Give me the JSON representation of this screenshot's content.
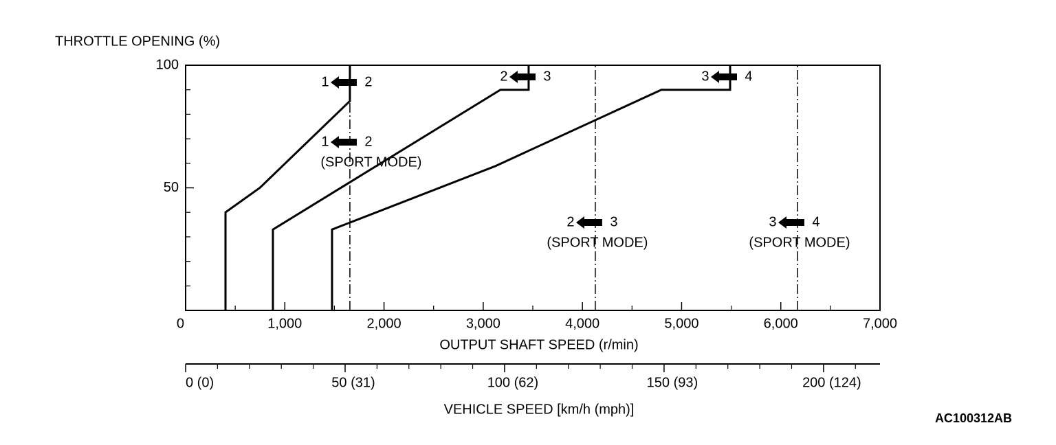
{
  "chart_data": {
    "type": "line",
    "y_label": "THROTTLE OPENING (%)",
    "x_label": "OUTPUT SHAFT SPEED (r/min)",
    "x2_label": "VEHICLE SPEED [km/h (mph)]",
    "figure_code": "AC100312AB",
    "xlim": [
      0,
      7000
    ],
    "xticks": [
      0,
      {
        "value": 1000,
        "label": "1,000"
      },
      {
        "value": 2000,
        "label": "2,000"
      },
      {
        "value": 3000,
        "label": "3,000"
      },
      {
        "value": 4000,
        "label": "4,000"
      },
      {
        "value": 5000,
        "label": "5,000"
      },
      {
        "value": 6000,
        "label": "6,000"
      },
      {
        "value": 7000,
        "label": "7,000"
      }
    ],
    "xticks_minor": [
      500,
      1500,
      2500,
      3500,
      4500,
      5500,
      6500
    ],
    "ylim": [
      0,
      100
    ],
    "yticks": [
      50,
      100
    ],
    "yticks_minor": [
      10,
      20,
      30,
      40,
      60,
      70,
      80,
      90
    ],
    "x2lim": [
      0,
      217.7
    ],
    "x2ticks": [
      {
        "value": 0,
        "label": "0 (0)"
      },
      {
        "value": 50,
        "label": "50 (31)"
      },
      {
        "value": 100,
        "label": "100 (62)"
      },
      {
        "value": 150,
        "label": "150 (93)"
      },
      {
        "value": 200,
        "label": "200 (124)"
      }
    ],
    "x2ticks_minor": [
      10,
      20,
      30,
      40,
      60,
      70,
      80,
      90,
      110,
      120,
      130,
      140,
      160,
      170,
      180,
      190,
      210
    ],
    "series": [
      {
        "from": "1",
        "to": "2",
        "style": "solid",
        "color": "#000000",
        "x": [
          402,
          402,
          748,
          1656,
          1656
        ],
        "values": [
          0,
          40,
          50,
          85.4,
          100
        ]
      },
      {
        "from": "2",
        "to": "3",
        "style": "solid",
        "color": "#000000",
        "x": [
          880,
          880,
          3174,
          3458,
          3458
        ],
        "values": [
          0,
          33,
          90,
          90,
          100
        ]
      },
      {
        "from": "3",
        "to": "4",
        "style": "solid",
        "color": "#000000",
        "x": [
          1476,
          1476,
          3119,
          4796,
          5489,
          5489
        ],
        "values": [
          0,
          33,
          58.8,
          90,
          90,
          100
        ]
      },
      {
        "from": "1",
        "to": "2",
        "mode": "(SPORT MODE)",
        "style": "dashed",
        "color": "#000000",
        "x": [
          1656,
          1656
        ],
        "values": [
          0,
          100
        ]
      },
      {
        "from": "2",
        "to": "3",
        "mode": "(SPORT MODE)",
        "style": "dashed",
        "color": "#000000",
        "x": [
          4130,
          4130
        ],
        "values": [
          0,
          100
        ]
      },
      {
        "from": "3",
        "to": "4",
        "mode": "(SPORT MODE)",
        "style": "dashed",
        "color": "#000000",
        "x": [
          6168,
          6168
        ],
        "values": [
          0,
          100
        ]
      }
    ]
  }
}
